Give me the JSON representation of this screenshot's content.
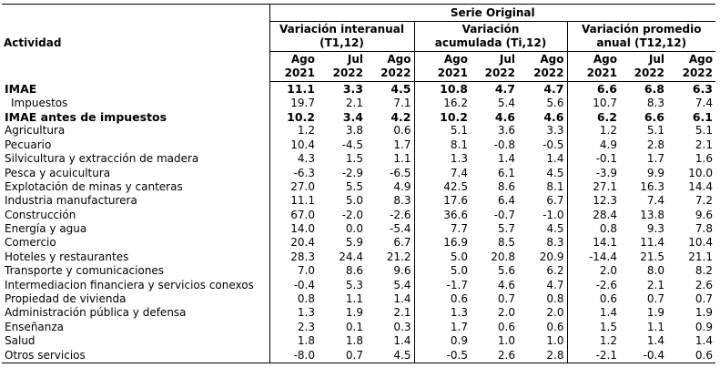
{
  "header": {
    "serie": "Serie Original",
    "actividad": "Actividad",
    "groups": [
      {
        "l1": "Variación interanual",
        "l2": "(T1,12)"
      },
      {
        "l1": "Variación",
        "l2": "acumulada (Ti,12)"
      },
      {
        "l1": "Variación promedio",
        "l2": "anual (T12,12)"
      }
    ],
    "periods": [
      {
        "m": "Ago",
        "y": "2021"
      },
      {
        "m": "Jul",
        "y": "2022"
      },
      {
        "m": "Ago",
        "y": "2022"
      },
      {
        "m": "Ago",
        "y": "2021"
      },
      {
        "m": "Jul",
        "y": "2022"
      },
      {
        "m": "Ago",
        "y": "2022"
      },
      {
        "m": "Ago",
        "y": "2021"
      },
      {
        "m": "Jul",
        "y": "2022"
      },
      {
        "m": "Ago",
        "y": "2022"
      }
    ]
  },
  "rows": [
    {
      "label": "IMAE",
      "bold": true,
      "v": [
        "11.1",
        "3.3",
        "4.5",
        "10.8",
        "4.7",
        "4.7",
        "6.6",
        "6.8",
        "6.3"
      ]
    },
    {
      "label": "Impuestos",
      "sub": true,
      "v": [
        "19.7",
        "2.1",
        "7.1",
        "16.2",
        "5.4",
        "5.6",
        "10.7",
        "8.3",
        "7.4"
      ]
    },
    {
      "label": "IMAE antes de impuestos",
      "bold": true,
      "v": [
        "10.2",
        "3.4",
        "4.2",
        "10.2",
        "4.6",
        "4.6",
        "6.2",
        "6.6",
        "6.1"
      ]
    },
    {
      "label": "Agricultura",
      "v": [
        "1.2",
        "3.8",
        "0.6",
        "5.1",
        "3.6",
        "3.3",
        "1.2",
        "5.1",
        "5.1"
      ]
    },
    {
      "label": "Pecuario",
      "v": [
        "10.4",
        "-4.5",
        "1.7",
        "8.1",
        "-0.8",
        "-0.5",
        "4.9",
        "2.8",
        "2.1"
      ]
    },
    {
      "label": "Silvicultura y extracción de madera",
      "v": [
        "4.3",
        "1.5",
        "1.1",
        "1.3",
        "1.4",
        "1.4",
        "-0.1",
        "1.7",
        "1.6"
      ]
    },
    {
      "label": "Pesca y acuicultura",
      "v": [
        "-6.3",
        "-2.9",
        "-6.5",
        "7.4",
        "6.1",
        "4.5",
        "-3.9",
        "9.9",
        "10.0"
      ]
    },
    {
      "label": "Explotación de minas y canteras",
      "v": [
        "27.0",
        "5.5",
        "4.9",
        "42.5",
        "8.6",
        "8.1",
        "27.1",
        "16.3",
        "14.4"
      ]
    },
    {
      "label": "Industria manufacturera",
      "v": [
        "11.1",
        "5.0",
        "8.3",
        "17.6",
        "6.4",
        "6.7",
        "12.3",
        "7.4",
        "7.2"
      ]
    },
    {
      "label": "Construcción",
      "v": [
        "67.0",
        "-2.0",
        "-2.6",
        "36.6",
        "-0.7",
        "-1.0",
        "28.4",
        "13.8",
        "9.6"
      ]
    },
    {
      "label": "Energía y agua",
      "v": [
        "14.0",
        "0.0",
        "-5.4",
        "7.7",
        "5.7",
        "4.5",
        "0.8",
        "9.3",
        "7.8"
      ]
    },
    {
      "label": "Comercio",
      "v": [
        "20.4",
        "5.9",
        "6.7",
        "16.9",
        "8.5",
        "8.3",
        "14.1",
        "11.4",
        "10.4"
      ]
    },
    {
      "label": "Hoteles y restaurantes",
      "v": [
        "28.3",
        "24.4",
        "21.2",
        "5.0",
        "20.8",
        "20.9",
        "-14.4",
        "21.5",
        "21.1"
      ]
    },
    {
      "label": "Transporte y comunicaciones",
      "v": [
        "7.0",
        "8.6",
        "9.6",
        "5.0",
        "5.6",
        "6.2",
        "2.0",
        "8.0",
        "8.2"
      ]
    },
    {
      "label": "Intermediacion financiera y servicios conexos",
      "v": [
        "-0.4",
        "5.3",
        "5.4",
        "-1.7",
        "4.6",
        "4.7",
        "-2.6",
        "2.1",
        "2.6"
      ]
    },
    {
      "label": "Propiedad de vivienda",
      "v": [
        "0.8",
        "1.1",
        "1.4",
        "0.6",
        "0.7",
        "0.8",
        "0.6",
        "0.7",
        "0.7"
      ]
    },
    {
      "label": "Administración pública y defensa",
      "v": [
        "1.3",
        "1.9",
        "2.1",
        "1.3",
        "2.0",
        "2.0",
        "1.4",
        "1.9",
        "1.9"
      ]
    },
    {
      "label": "Enseñanza",
      "v": [
        "2.3",
        "0.1",
        "0.3",
        "1.7",
        "0.6",
        "0.6",
        "1.5",
        "1.1",
        "0.9"
      ]
    },
    {
      "label": "Salud",
      "v": [
        "1.8",
        "1.8",
        "1.4",
        "0.9",
        "1.0",
        "1.0",
        "1.2",
        "1.4",
        "1.4"
      ]
    },
    {
      "label": "Otros servicios",
      "v": [
        "-8.0",
        "0.7",
        "4.5",
        "-0.5",
        "2.6",
        "2.8",
        "-2.1",
        "-0.4",
        "0.6"
      ]
    }
  ]
}
